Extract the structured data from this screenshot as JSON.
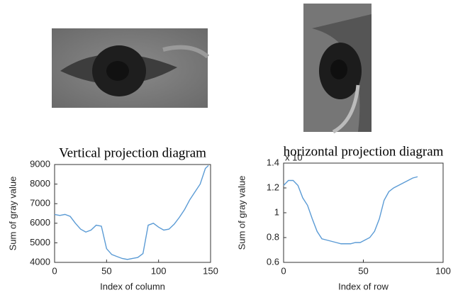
{
  "chart_data": [
    {
      "type": "line",
      "title": "Vertical projection diagram",
      "x_label": "Index of column",
      "y_label": "Sum of gray value",
      "x": [
        0,
        5,
        10,
        15,
        20,
        25,
        30,
        35,
        40,
        45,
        50,
        55,
        60,
        65,
        70,
        75,
        80,
        85,
        90,
        95,
        100,
        105,
        110,
        115,
        120,
        125,
        130,
        135,
        140,
        145,
        148
      ],
      "series": [
        {
          "color": "#5b9bd5",
          "values": [
            6450,
            6400,
            6450,
            6350,
            6000,
            5700,
            5550,
            5650,
            5900,
            5850,
            4700,
            4400,
            4300,
            4200,
            4150,
            4200,
            4250,
            4450,
            5900,
            6000,
            5800,
            5650,
            5700,
            5950,
            6300,
            6700,
            7200,
            7600,
            8000,
            8800,
            8950
          ]
        }
      ],
      "xlim": [
        0,
        150
      ],
      "xticks": [
        0,
        50,
        100,
        150
      ],
      "ylim": [
        4000,
        9000
      ],
      "yticks": [
        4000,
        5000,
        6000,
        7000,
        8000,
        9000
      ]
    },
    {
      "type": "line",
      "title": "horizontal projection diagram",
      "x_label": "Index of row",
      "y_label": "Sum of gray value",
      "y_multiplier": "x 10",
      "x": [
        0,
        3,
        6,
        9,
        12,
        15,
        18,
        21,
        24,
        27,
        30,
        33,
        36,
        39,
        42,
        45,
        48,
        51,
        54,
        57,
        60,
        63,
        66,
        69,
        72,
        75,
        78,
        81,
        84
      ],
      "series": [
        {
          "color": "#5b9bd5",
          "values": [
            1.22,
            1.26,
            1.26,
            1.22,
            1.12,
            1.06,
            0.95,
            0.85,
            0.79,
            0.78,
            0.77,
            0.76,
            0.75,
            0.75,
            0.75,
            0.76,
            0.76,
            0.78,
            0.8,
            0.85,
            0.95,
            1.1,
            1.17,
            1.2,
            1.22,
            1.24,
            1.26,
            1.28,
            1.29
          ]
        }
      ],
      "xlim": [
        0,
        100
      ],
      "xticks": [
        0,
        50,
        100
      ],
      "ylim": [
        0.6,
        1.4
      ],
      "yticks": [
        0.6,
        0.8,
        1,
        1.2,
        1.4
      ]
    }
  ]
}
